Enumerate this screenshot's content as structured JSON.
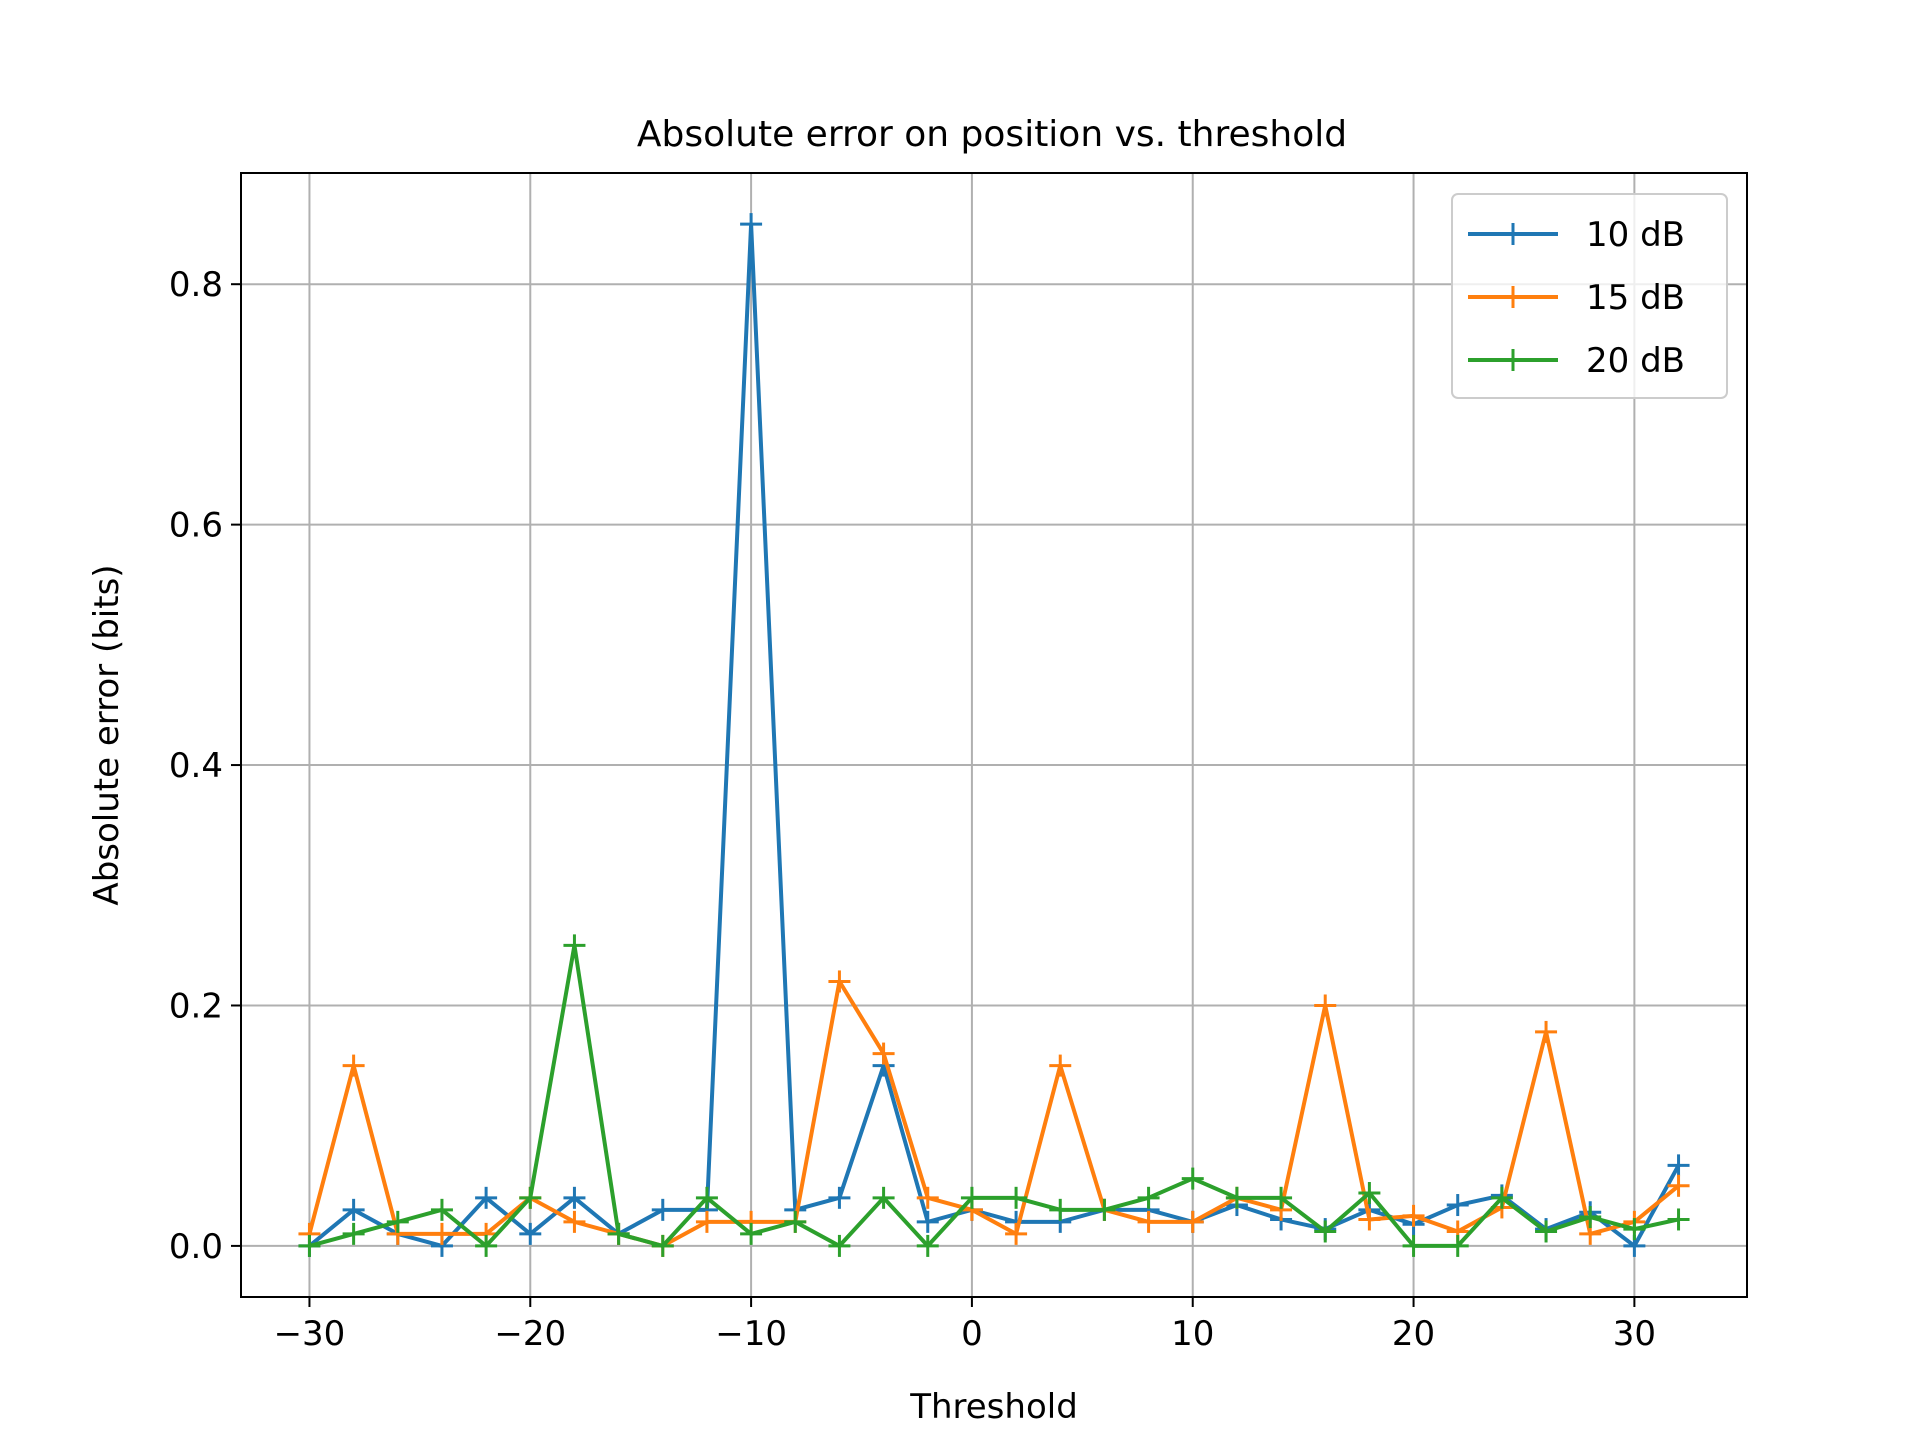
{
  "chart_data": {
    "type": "line",
    "title": "Absolute error on position vs. threshold",
    "xlabel": "Threshold",
    "ylabel": "Absolute error (bits)",
    "xlim": [
      -33.1,
      35.1
    ],
    "ylim": [
      -0.0425,
      0.8925
    ],
    "xticks": [
      -30,
      -20,
      -10,
      0,
      10,
      20,
      30
    ],
    "xtick_labels": [
      "−30",
      "−20",
      "−10",
      "0",
      "10",
      "20",
      "30"
    ],
    "yticks": [
      0.0,
      0.2,
      0.4,
      0.6,
      0.8
    ],
    "ytick_labels": [
      "0.0",
      "0.2",
      "0.4",
      "0.6",
      "0.8"
    ],
    "grid": true,
    "legend_position": "top-right",
    "marker": "+",
    "x": [
      -30,
      -28,
      -26,
      -24,
      -22,
      -20,
      -18,
      -16,
      -14,
      -12,
      -10,
      -8,
      -6,
      -4,
      -2,
      0,
      2,
      4,
      6,
      8,
      10,
      12,
      14,
      16,
      18,
      20,
      22,
      24,
      26,
      28,
      30,
      32
    ],
    "series": [
      {
        "name": "10 dB",
        "color": "#1f77b4",
        "values": [
          0.0,
          0.03,
          0.01,
          0.0,
          0.04,
          0.01,
          0.04,
          0.01,
          0.03,
          0.03,
          0.85,
          0.03,
          0.04,
          0.15,
          0.02,
          0.03,
          0.02,
          0.02,
          0.03,
          0.03,
          0.02,
          0.034,
          0.022,
          0.014,
          0.03,
          0.018,
          0.034,
          0.042,
          0.014,
          0.028,
          0.0,
          0.067
        ]
      },
      {
        "name": "15 dB",
        "color": "#ff7f0e",
        "values": [
          0.01,
          0.15,
          0.01,
          0.01,
          0.01,
          0.04,
          0.02,
          0.01,
          0.0,
          0.02,
          0.02,
          0.02,
          0.22,
          0.16,
          0.04,
          0.03,
          0.01,
          0.15,
          0.03,
          0.02,
          0.02,
          0.04,
          0.03,
          0.2,
          0.022,
          0.025,
          0.012,
          0.032,
          0.178,
          0.01,
          0.02,
          0.05
        ]
      },
      {
        "name": "20 dB",
        "color": "#2ca02c",
        "values": [
          0.0,
          0.01,
          0.02,
          0.03,
          0.0,
          0.04,
          0.25,
          0.01,
          0.0,
          0.04,
          0.01,
          0.02,
          0.0,
          0.04,
          0.0,
          0.04,
          0.04,
          0.03,
          0.03,
          0.04,
          0.056,
          0.04,
          0.04,
          0.012,
          0.044,
          0.0,
          0.0,
          0.04,
          0.012,
          0.024,
          0.014,
          0.022
        ]
      }
    ]
  }
}
